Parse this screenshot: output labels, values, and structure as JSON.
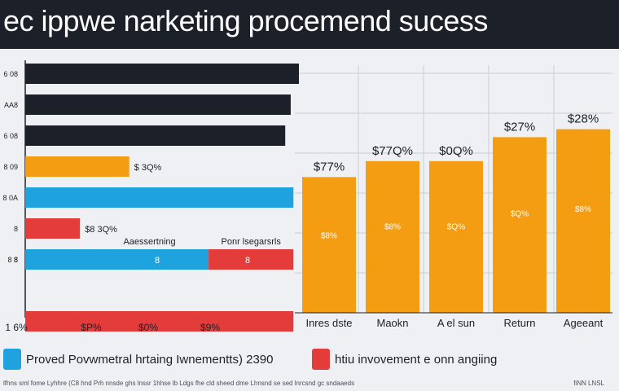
{
  "title": "ec ippwe narketing procemend sucess",
  "legend": [
    {
      "label": "Proved Povwmetral hrtaing Iwnementts) 2390",
      "color": "#1ea3df"
    },
    {
      "label": "htiu invovement e onn angiing",
      "color": "#e43b3b"
    }
  ],
  "footnote": "lfhns sml fome Lyhhre (C8 hnd Prh nnsde ghs lnssr 1hhse lb Ldgs fhe cld sheed dme Lhnsnd se sed lnrcsnd gc sndaaeds",
  "footnote_right": "fiNN LNSL",
  "colors": {
    "dark": "#1b2029",
    "orange": "#f49c12",
    "blue": "#1ea3df",
    "red": "#e43b3b",
    "grid": "#c9ccd2"
  },
  "chart_data": [
    {
      "type": "bar",
      "orientation": "horizontal",
      "categories": [
        "S",
        "AAS",
        "S",
        "S",
        "S",
        "S",
        "S",
        "S",
        "S"
      ],
      "y_tick_labels": [
        "6 08",
        "AA8",
        "6 08",
        "8 09",
        "8 0A",
        "8",
        "8 8",
        "8",
        ""
      ],
      "bars": [
        {
          "value": 100,
          "color": "dark",
          "label": ""
        },
        {
          "value": 97,
          "color": "dark",
          "label": ""
        },
        {
          "value": 95,
          "color": "dark",
          "label": ""
        },
        {
          "value": 38,
          "color": "orange",
          "label": "$ 3Q%"
        },
        {
          "value": 98,
          "color": "blue",
          "label": ""
        },
        {
          "value": 20,
          "color": "red",
          "label": "$8 3Q%"
        },
        {
          "value": 67,
          "color": "blue",
          "label": "Aaessertning",
          "inner": "8"
        },
        {
          "value": 98,
          "color": "red",
          "label": "Ponr lsegarsrls",
          "inner": "8",
          "start": 67
        },
        {
          "value": 98,
          "color": "red",
          "label": ""
        }
      ],
      "x_tick_labels": [
        "1 6%",
        "$P%",
        "$0%",
        "$9%"
      ],
      "xlim": [
        0,
        100
      ]
    },
    {
      "type": "bar",
      "categories": [
        "Inres dste",
        "Maokn",
        "A el sun",
        "Return",
        "Ageeant"
      ],
      "values": [
        17,
        19,
        19,
        22,
        23
      ],
      "top_labels": [
        "$77%",
        "$77Q%",
        "$0Q%",
        "$27%",
        "$28%"
      ],
      "inner_labels": [
        "$8%",
        "$8%",
        "$Q%",
        "$Q%",
        "$8%"
      ],
      "ylim": [
        0,
        30
      ],
      "grid": true,
      "series_color": "orange"
    }
  ]
}
